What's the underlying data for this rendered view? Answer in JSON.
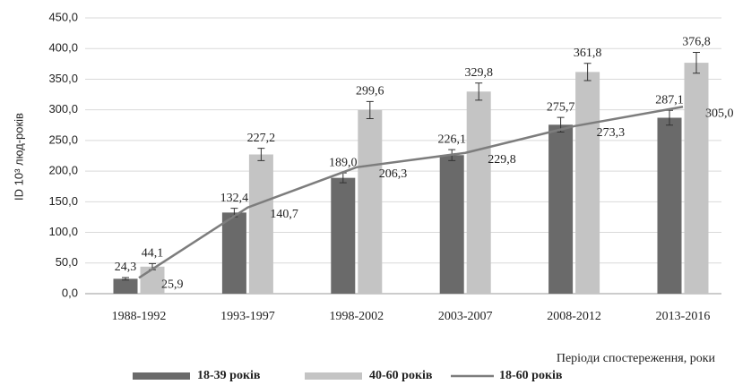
{
  "chart_data": {
    "type": "bar_line",
    "ylabel": "ID 10³ люд-років",
    "xlabel": "Періоди спостереження, роки",
    "categories": [
      "1988-1992",
      "1993-1997",
      "1998-2002",
      "2003-2007",
      "2008-2012",
      "2013-2016"
    ],
    "ylim": [
      0,
      450
    ],
    "yticks": [
      {
        "value": 0,
        "label": "0,0"
      },
      {
        "value": 50,
        "label": "50,0"
      },
      {
        "value": 100,
        "label": "100,0"
      },
      {
        "value": 150,
        "label": "150,0"
      },
      {
        "value": 200,
        "label": "200,0"
      },
      {
        "value": 250,
        "label": "250,0"
      },
      {
        "value": 300,
        "label": "300,0"
      },
      {
        "value": 350,
        "label": "350,0"
      },
      {
        "value": 400,
        "label": "400,0"
      },
      {
        "value": 450,
        "label": "450,0"
      }
    ],
    "grid": true,
    "series": [
      {
        "name": "18-39 років",
        "kind": "bar",
        "color": "#6a6a6a",
        "values": [
          24.3,
          132.4,
          189.0,
          226.1,
          275.7,
          287.1
        ],
        "errors": [
          2,
          7,
          8,
          9,
          12,
          12
        ],
        "value_labels": [
          "24,3",
          "132,4",
          "189,0",
          "226,1",
          "275,7",
          "287,1"
        ]
      },
      {
        "name": "40-60 років",
        "kind": "bar",
        "color": "#c4c4c4",
        "values": [
          44.1,
          227.2,
          299.6,
          329.8,
          361.8,
          376.8
        ],
        "errors": [
          5,
          10,
          14,
          14,
          14,
          17
        ],
        "value_labels": [
          "44,1",
          "227,2",
          "299,6",
          "329,8",
          "361,8",
          "376,8"
        ]
      },
      {
        "name": "18-60 років",
        "kind": "line",
        "color": "#7d7d7d",
        "values": [
          25.9,
          140.7,
          206.3,
          229.8,
          273.3,
          305.0
        ],
        "value_labels": [
          "25,9",
          "140,7",
          "206,3",
          "229,8",
          "273,3",
          "305,0"
        ]
      }
    ]
  }
}
